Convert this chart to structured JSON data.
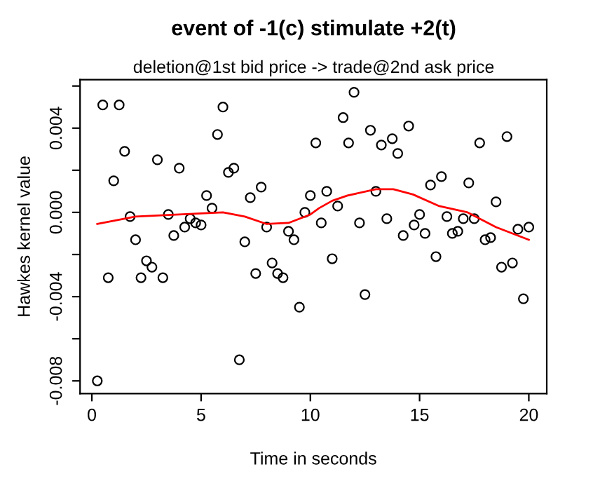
{
  "chart_data": {
    "type": "scatter",
    "title": "event of -1(c) stimulate +2(t)",
    "subtitle": "deletion@1st bid price -> trade@2nd ask price",
    "xlabel": "Time in seconds",
    "ylabel": "Hawkes kernel value",
    "series": [
      {
        "color": "#000000",
        "marker": "circle",
        "x": [
          0.25,
          0.5,
          0.75,
          1.0,
          1.25,
          1.5,
          1.75,
          2.0,
          2.25,
          2.5,
          2.75,
          3.0,
          3.25,
          3.5,
          3.75,
          4.0,
          4.25,
          4.5,
          4.75,
          5.0,
          5.25,
          5.5,
          5.75,
          6.0,
          6.25,
          6.5,
          6.75,
          7.0,
          7.25,
          7.5,
          7.75,
          8.0,
          8.25,
          8.5,
          8.75,
          9.0,
          9.25,
          9.5,
          9.75,
          10.0,
          10.25,
          10.5,
          10.75,
          11.0,
          11.25,
          11.5,
          11.75,
          12.0,
          12.25,
          12.5,
          12.75,
          13.0,
          13.25,
          13.5,
          13.75,
          14.0,
          14.25,
          14.5,
          14.75,
          15.0,
          15.25,
          15.5,
          15.75,
          16.0,
          16.25,
          16.5,
          16.75,
          17.0,
          17.25,
          17.5,
          17.75,
          18.0,
          18.25,
          18.5,
          18.75,
          19.0,
          19.25,
          19.5,
          19.75,
          20.0
        ],
        "values": [
          -0.008,
          0.0051,
          -0.0031,
          0.0015,
          0.0051,
          0.0029,
          -0.0002,
          -0.0013,
          -0.0031,
          -0.0023,
          -0.0026,
          0.0025,
          -0.0031,
          -0.0001,
          -0.0011,
          0.0021,
          -0.0007,
          -0.0003,
          -0.0005,
          -0.0006,
          0.0008,
          0.0002,
          0.0037,
          0.005,
          0.0019,
          0.0021,
          -0.007,
          -0.0014,
          0.0007,
          -0.0029,
          0.0012,
          -0.0007,
          -0.0024,
          -0.0029,
          -0.0031,
          -0.0009,
          -0.0013,
          -0.0045,
          0.0,
          0.0008,
          0.0033,
          -0.0005,
          0.001,
          -0.0022,
          0.0003,
          0.0045,
          0.0033,
          0.0057,
          -0.0005,
          -0.0039,
          0.0039,
          0.001,
          0.0032,
          -0.0003,
          0.0035,
          0.0028,
          -0.0011,
          0.0041,
          -0.0006,
          -0.0001,
          -0.001,
          0.0013,
          -0.0021,
          0.0017,
          -0.0002,
          -0.001,
          -0.0009,
          -0.0003,
          0.0014,
          -0.0003,
          0.0033,
          -0.0013,
          -0.0012,
          0.0005,
          -0.0026,
          0.0036,
          -0.0024,
          -0.0008,
          -0.0041,
          -0.0007
        ]
      },
      {
        "type": "line",
        "color": "#ff0000",
        "marker": "none",
        "line_style": "solid",
        "x": [
          0.25,
          2,
          4,
          6,
          7,
          8,
          9,
          10,
          10.4,
          11,
          11.7,
          13,
          13.8,
          14.7,
          15.9,
          17.2,
          18.5,
          20
        ],
        "values": [
          -0.00055,
          -0.0002,
          -0.0001,
          0.0,
          -0.0002,
          -0.00055,
          -0.0005,
          -0.0001,
          0.0002,
          0.00055,
          0.0008,
          0.0011,
          0.0011,
          0.00085,
          0.0003,
          0.0,
          -0.0007,
          -0.0013
        ]
      }
    ],
    "xlim": [
      -0.54,
      20.82
    ],
    "xticks": [
      0,
      5,
      10,
      15,
      20
    ],
    "ylim": [
      -0.0086,
      0.0063
    ],
    "yticks": [
      {
        "value": -0.008,
        "label": "-0.008"
      },
      {
        "value": -0.006,
        "label": null
      },
      {
        "value": -0.004,
        "label": "-0.004"
      },
      {
        "value": -0.002,
        "label": null
      },
      {
        "value": 0.0,
        "label": "0.000"
      },
      {
        "value": 0.002,
        "label": null
      },
      {
        "value": 0.004,
        "label": "0.004"
      },
      {
        "value": 0.006,
        "label": null
      }
    ],
    "grid": false,
    "legend": false
  }
}
